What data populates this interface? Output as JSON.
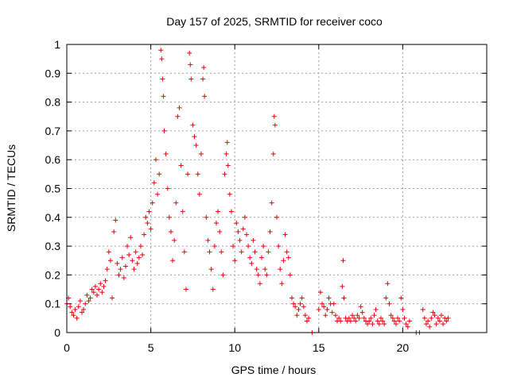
{
  "chart_data": {
    "type": "scatter",
    "title": "Day 157 of 2025, SRMTID for receiver coco",
    "xlabel": "GPS time / hours",
    "ylabel": "SRMTID / TECUs",
    "xlim": [
      0,
      25
    ],
    "ylim": [
      0,
      1
    ],
    "xticks": [
      0,
      5,
      10,
      15,
      20
    ],
    "xtick_labels": [
      "0",
      "5",
      "10",
      "15",
      "20"
    ],
    "yticks": [
      0,
      0.1,
      0.2,
      0.3,
      0.4,
      0.5,
      0.6,
      0.7,
      0.8,
      0.9,
      1
    ],
    "ytick_labels": [
      "0",
      "0.1",
      "0.2",
      "0.3",
      "0.4",
      "0.5",
      "0.6",
      "0.7",
      "0.8",
      "0.9",
      "1"
    ],
    "grid": true,
    "marker": "+",
    "marker_color": "#e8000b",
    "series": [
      {
        "name": "SRMTID",
        "points": [
          [
            0.0,
            0.1
          ],
          [
            0.1,
            0.12
          ],
          [
            0.2,
            0.09
          ],
          [
            0.3,
            0.07
          ],
          [
            0.4,
            0.06
          ],
          [
            0.5,
            0.08
          ],
          [
            0.6,
            0.05
          ],
          [
            0.7,
            0.09
          ],
          [
            0.8,
            0.11
          ],
          [
            0.9,
            0.07
          ],
          [
            1.0,
            0.08
          ],
          [
            1.1,
            0.1
          ],
          [
            1.2,
            0.13
          ],
          [
            1.3,
            0.11
          ],
          [
            1.4,
            0.12
          ],
          [
            1.5,
            0.15
          ],
          [
            1.6,
            0.14
          ],
          [
            1.7,
            0.16
          ],
          [
            1.8,
            0.13
          ],
          [
            1.9,
            0.15
          ],
          [
            2.0,
            0.17
          ],
          [
            2.1,
            0.14
          ],
          [
            2.2,
            0.16
          ],
          [
            2.3,
            0.18
          ],
          [
            2.4,
            0.22
          ],
          [
            2.5,
            0.28
          ],
          [
            2.6,
            0.25
          ],
          [
            2.7,
            0.12
          ],
          [
            2.8,
            0.35
          ],
          [
            2.9,
            0.39
          ],
          [
            3.0,
            0.24
          ],
          [
            3.1,
            0.2
          ],
          [
            3.2,
            0.22
          ],
          [
            3.3,
            0.26
          ],
          [
            3.4,
            0.19
          ],
          [
            3.5,
            0.23
          ],
          [
            3.6,
            0.3
          ],
          [
            3.7,
            0.27
          ],
          [
            3.8,
            0.33
          ],
          [
            3.9,
            0.25
          ],
          [
            4.0,
            0.22
          ],
          [
            4.1,
            0.28
          ],
          [
            4.2,
            0.24
          ],
          [
            4.3,
            0.26
          ],
          [
            4.4,
            0.3
          ],
          [
            4.5,
            0.27
          ],
          [
            4.6,
            0.34
          ],
          [
            4.7,
            0.4
          ],
          [
            4.8,
            0.38
          ],
          [
            4.9,
            0.42
          ],
          [
            5.0,
            0.36
          ],
          [
            5.1,
            0.45
          ],
          [
            5.2,
            0.52
          ],
          [
            5.3,
            0.6
          ],
          [
            5.4,
            0.48
          ],
          [
            5.5,
            0.55
          ],
          [
            5.6,
            0.98
          ],
          [
            5.65,
            0.95
          ],
          [
            5.7,
            0.88
          ],
          [
            5.75,
            0.82
          ],
          [
            5.8,
            0.7
          ],
          [
            5.9,
            0.62
          ],
          [
            6.0,
            0.5
          ],
          [
            6.1,
            0.4
          ],
          [
            6.2,
            0.35
          ],
          [
            6.3,
            0.25
          ],
          [
            6.4,
            0.32
          ],
          [
            6.5,
            0.45
          ],
          [
            6.6,
            0.75
          ],
          [
            6.7,
            0.78
          ],
          [
            6.8,
            0.58
          ],
          [
            6.9,
            0.42
          ],
          [
            7.0,
            0.28
          ],
          [
            7.1,
            0.15
          ],
          [
            7.2,
            0.55
          ],
          [
            7.3,
            0.97
          ],
          [
            7.35,
            0.93
          ],
          [
            7.4,
            0.88
          ],
          [
            7.5,
            0.72
          ],
          [
            7.6,
            0.68
          ],
          [
            7.7,
            0.65
          ],
          [
            7.8,
            0.55
          ],
          [
            7.9,
            0.48
          ],
          [
            8.0,
            0.62
          ],
          [
            8.1,
            0.88
          ],
          [
            8.15,
            0.92
          ],
          [
            8.2,
            0.82
          ],
          [
            8.3,
            0.4
          ],
          [
            8.4,
            0.32
          ],
          [
            8.5,
            0.28
          ],
          [
            8.6,
            0.22
          ],
          [
            8.7,
            0.15
          ],
          [
            8.8,
            0.3
          ],
          [
            8.9,
            0.38
          ],
          [
            9.0,
            0.42
          ],
          [
            9.1,
            0.35
          ],
          [
            9.2,
            0.28
          ],
          [
            9.3,
            0.2
          ],
          [
            9.4,
            0.55
          ],
          [
            9.5,
            0.62
          ],
          [
            9.55,
            0.66
          ],
          [
            9.6,
            0.58
          ],
          [
            9.7,
            0.48
          ],
          [
            9.8,
            0.42
          ],
          [
            9.9,
            0.3
          ],
          [
            10.0,
            0.25
          ],
          [
            10.1,
            0.38
          ],
          [
            10.2,
            0.35
          ],
          [
            10.3,
            0.32
          ],
          [
            10.4,
            0.28
          ],
          [
            10.5,
            0.36
          ],
          [
            10.6,
            0.4
          ],
          [
            10.7,
            0.34
          ],
          [
            10.8,
            0.3
          ],
          [
            10.9,
            0.26
          ],
          [
            11.0,
            0.24
          ],
          [
            11.1,
            0.32
          ],
          [
            11.2,
            0.28
          ],
          [
            11.3,
            0.22
          ],
          [
            11.4,
            0.2
          ],
          [
            11.5,
            0.17
          ],
          [
            11.6,
            0.26
          ],
          [
            11.7,
            0.3
          ],
          [
            11.8,
            0.22
          ],
          [
            11.9,
            0.2
          ],
          [
            12.0,
            0.28
          ],
          [
            12.1,
            0.35
          ],
          [
            12.2,
            0.45
          ],
          [
            12.3,
            0.62
          ],
          [
            12.35,
            0.75
          ],
          [
            12.4,
            0.72
          ],
          [
            12.5,
            0.4
          ],
          [
            12.6,
            0.3
          ],
          [
            12.7,
            0.22
          ],
          [
            12.8,
            0.17
          ],
          [
            12.9,
            0.25
          ],
          [
            13.0,
            0.34
          ],
          [
            13.1,
            0.28
          ],
          [
            13.2,
            0.26
          ],
          [
            13.3,
            0.2
          ],
          [
            13.4,
            0.12
          ],
          [
            13.5,
            0.1
          ],
          [
            13.6,
            0.09
          ],
          [
            13.7,
            0.06
          ],
          [
            13.8,
            0.08
          ],
          [
            13.9,
            0.1
          ],
          [
            14.0,
            0.12
          ],
          [
            14.1,
            0.09
          ],
          [
            14.2,
            0.06
          ],
          [
            14.3,
            0.04
          ],
          [
            14.4,
            0.05
          ],
          [
            14.6,
            0.0
          ],
          [
            15.0,
            0.08
          ],
          [
            15.1,
            0.14
          ],
          [
            15.2,
            0.1
          ],
          [
            15.3,
            0.09
          ],
          [
            15.4,
            0.06
          ],
          [
            15.5,
            0.08
          ],
          [
            15.6,
            0.12
          ],
          [
            15.7,
            0.1
          ],
          [
            15.8,
            0.07
          ],
          [
            15.9,
            0.1
          ],
          [
            16.0,
            0.06
          ],
          [
            16.1,
            0.04
          ],
          [
            16.2,
            0.05
          ],
          [
            16.3,
            0.04
          ],
          [
            16.4,
            0.16
          ],
          [
            16.45,
            0.25
          ],
          [
            16.5,
            0.12
          ],
          [
            16.6,
            0.05
          ],
          [
            16.7,
            0.04
          ],
          [
            16.8,
            0.05
          ],
          [
            16.9,
            0.04
          ],
          [
            17.0,
            0.06
          ],
          [
            17.1,
            0.05
          ],
          [
            17.2,
            0.04
          ],
          [
            17.3,
            0.06
          ],
          [
            17.4,
            0.05
          ],
          [
            17.5,
            0.09
          ],
          [
            17.6,
            0.07
          ],
          [
            17.7,
            0.05
          ],
          [
            17.8,
            0.04
          ],
          [
            17.9,
            0.03
          ],
          [
            18.0,
            0.04
          ],
          [
            18.1,
            0.05
          ],
          [
            18.2,
            0.03
          ],
          [
            18.3,
            0.06
          ],
          [
            18.4,
            0.08
          ],
          [
            18.5,
            0.04
          ],
          [
            18.6,
            0.03
          ],
          [
            18.7,
            0.05
          ],
          [
            18.8,
            0.04
          ],
          [
            18.9,
            0.03
          ],
          [
            19.0,
            0.12
          ],
          [
            19.1,
            0.17
          ],
          [
            19.2,
            0.1
          ],
          [
            19.3,
            0.06
          ],
          [
            19.4,
            0.05
          ],
          [
            19.5,
            0.04
          ],
          [
            19.6,
            0.03
          ],
          [
            19.7,
            0.05
          ],
          [
            19.8,
            0.04
          ],
          [
            19.9,
            0.12
          ],
          [
            20.0,
            0.08
          ],
          [
            20.1,
            0.05
          ],
          [
            20.2,
            0.03
          ],
          [
            20.3,
            0.02
          ],
          [
            20.4,
            0.04
          ],
          [
            20.8,
            0.0
          ],
          [
            21.0,
            0.0
          ],
          [
            21.2,
            0.08
          ],
          [
            21.3,
            0.05
          ],
          [
            21.4,
            0.03
          ],
          [
            21.5,
            0.04
          ],
          [
            21.6,
            0.02
          ],
          [
            21.7,
            0.05
          ],
          [
            21.8,
            0.07
          ],
          [
            21.9,
            0.06
          ],
          [
            22.0,
            0.03
          ],
          [
            22.1,
            0.05
          ],
          [
            22.2,
            0.04
          ],
          [
            22.3,
            0.06
          ],
          [
            22.4,
            0.03
          ],
          [
            22.5,
            0.05
          ],
          [
            22.6,
            0.04
          ],
          [
            22.7,
            0.05
          ]
        ]
      }
    ]
  }
}
